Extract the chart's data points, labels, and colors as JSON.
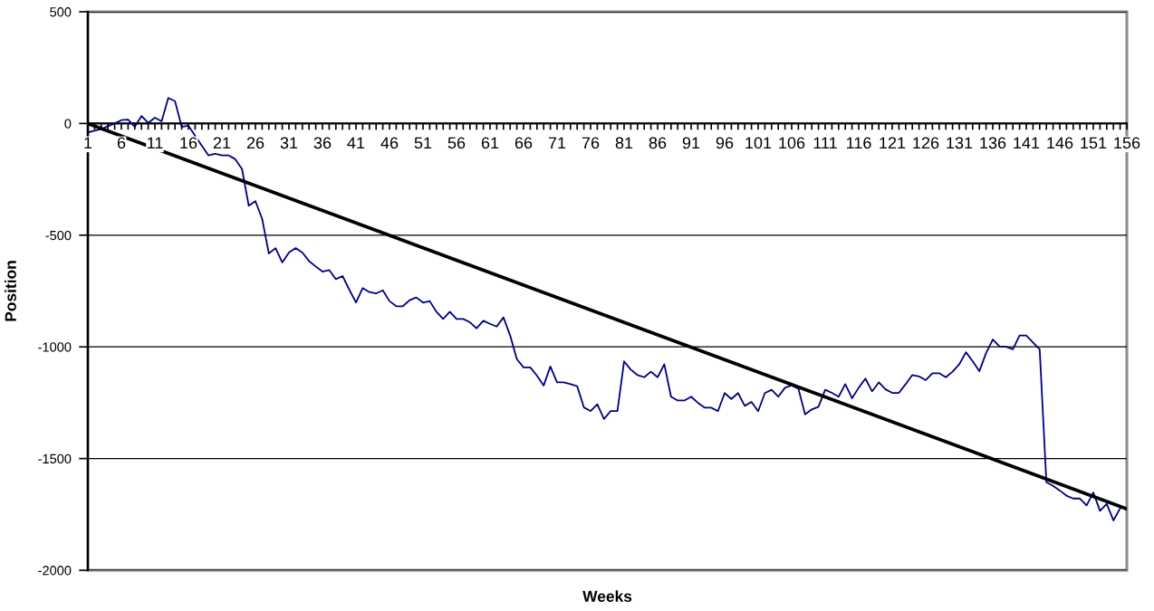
{
  "chart_data": {
    "type": "line",
    "xlabel": "Weeks",
    "ylabel": "Position",
    "x": [
      1,
      2,
      3,
      4,
      5,
      6,
      7,
      8,
      9,
      10,
      11,
      12,
      13,
      14,
      15,
      16,
      17,
      18,
      19,
      20,
      21,
      22,
      23,
      24,
      25,
      26,
      27,
      28,
      29,
      30,
      31,
      32,
      33,
      34,
      35,
      36,
      37,
      38,
      39,
      40,
      41,
      42,
      43,
      44,
      45,
      46,
      47,
      48,
      49,
      50,
      51,
      52,
      53,
      54,
      55,
      56,
      57,
      58,
      59,
      60,
      61,
      62,
      63,
      64,
      65,
      66,
      67,
      68,
      69,
      70,
      71,
      72,
      73,
      74,
      75,
      76,
      77,
      78,
      79,
      80,
      81,
      82,
      83,
      84,
      85,
      86,
      87,
      88,
      89,
      90,
      91,
      92,
      93,
      94,
      95,
      96,
      97,
      98,
      99,
      100,
      101,
      102,
      103,
      104,
      105,
      106,
      107,
      108,
      109,
      110,
      111,
      112,
      113,
      114,
      115,
      116,
      117,
      118,
      119,
      120,
      121,
      122,
      123,
      124,
      125,
      126,
      127,
      128,
      129,
      130,
      131,
      132,
      133,
      134,
      135,
      136,
      137,
      138,
      139,
      140,
      141,
      142,
      143,
      144,
      145,
      146,
      147,
      148,
      149,
      150,
      151,
      152,
      153,
      154,
      155
    ],
    "series": [
      {
        "color": "#000080",
        "values": [
          -40,
          -32,
          -25,
          -12,
          0,
          15,
          17,
          -15,
          33,
          3,
          26,
          10,
          114,
          100,
          -15,
          -10,
          -55,
          -100,
          -143,
          -136,
          -143,
          -143,
          -160,
          -204,
          -368,
          -348,
          -427,
          -582,
          -558,
          -622,
          -578,
          -558,
          -578,
          -616,
          -640,
          -663,
          -656,
          -697,
          -683,
          -744,
          -801,
          -737,
          -755,
          -761,
          -747,
          -795,
          -818,
          -818,
          -791,
          -779,
          -802,
          -795,
          -843,
          -875,
          -843,
          -875,
          -875,
          -890,
          -917,
          -883,
          -897,
          -909,
          -868,
          -949,
          -1055,
          -1092,
          -1092,
          -1129,
          -1173,
          -1088,
          -1159,
          -1159,
          -1167,
          -1176,
          -1271,
          -1287,
          -1257,
          -1323,
          -1287,
          -1287,
          -1065,
          -1102,
          -1126,
          -1136,
          -1111,
          -1136,
          -1078,
          -1223,
          -1240,
          -1240,
          -1223,
          -1250,
          -1272,
          -1272,
          -1288,
          -1207,
          -1233,
          -1207,
          -1264,
          -1246,
          -1288,
          -1207,
          -1192,
          -1223,
          -1183,
          -1172,
          -1187,
          -1302,
          -1280,
          -1268,
          -1192,
          -1206,
          -1223,
          -1167,
          -1230,
          -1183,
          -1142,
          -1199,
          -1159,
          -1190,
          -1206,
          -1206,
          -1167,
          -1126,
          -1132,
          -1149,
          -1118,
          -1118,
          -1136,
          -1111,
          -1078,
          -1024,
          -1064,
          -1109,
          -1028,
          -967,
          -998,
          -1000,
          -1011,
          -949,
          -949,
          -980,
          -1011,
          -1606,
          -1622,
          -1643,
          -1666,
          -1679,
          -1679,
          -1710,
          -1652,
          -1734,
          -1703,
          -1777,
          -1723
        ]
      },
      {
        "type": "line",
        "color": "#000000",
        "x": [
          1,
          156
        ],
        "values": [
          0,
          -1725
        ]
      }
    ],
    "xlim": [
      1,
      156
    ],
    "ylim": [
      -2000,
      500
    ],
    "xticks": [
      1,
      {
        "value": 2,
        "label": null
      },
      {
        "value": 3,
        "label": null
      },
      {
        "value": 4,
        "label": null
      },
      {
        "value": 5,
        "label": null
      },
      6,
      {
        "value": 7,
        "label": null
      },
      {
        "value": 8,
        "label": null
      },
      {
        "value": 9,
        "label": null
      },
      {
        "value": 10,
        "label": null
      },
      11,
      {
        "value": 12,
        "label": null
      },
      {
        "value": 13,
        "label": null
      },
      {
        "value": 14,
        "label": null
      },
      {
        "value": 15,
        "label": null
      },
      16,
      {
        "value": 17,
        "label": null
      },
      {
        "value": 18,
        "label": null
      },
      {
        "value": 19,
        "label": null
      },
      {
        "value": 20,
        "label": null
      },
      21,
      {
        "value": 22,
        "label": null
      },
      {
        "value": 23,
        "label": null
      },
      {
        "value": 24,
        "label": null
      },
      {
        "value": 25,
        "label": null
      },
      26,
      {
        "value": 27,
        "label": null
      },
      {
        "value": 28,
        "label": null
      },
      {
        "value": 29,
        "label": null
      },
      {
        "value": 30,
        "label": null
      },
      31,
      {
        "value": 32,
        "label": null
      },
      {
        "value": 33,
        "label": null
      },
      {
        "value": 34,
        "label": null
      },
      {
        "value": 35,
        "label": null
      },
      36,
      {
        "value": 37,
        "label": null
      },
      {
        "value": 38,
        "label": null
      },
      {
        "value": 39,
        "label": null
      },
      {
        "value": 40,
        "label": null
      },
      41,
      {
        "value": 42,
        "label": null
      },
      {
        "value": 43,
        "label": null
      },
      {
        "value": 44,
        "label": null
      },
      {
        "value": 45,
        "label": null
      },
      46,
      {
        "value": 47,
        "label": null
      },
      {
        "value": 48,
        "label": null
      },
      {
        "value": 49,
        "label": null
      },
      {
        "value": 50,
        "label": null
      },
      51,
      {
        "value": 52,
        "label": null
      },
      {
        "value": 53,
        "label": null
      },
      {
        "value": 54,
        "label": null
      },
      {
        "value": 55,
        "label": null
      },
      56,
      {
        "value": 57,
        "label": null
      },
      {
        "value": 58,
        "label": null
      },
      {
        "value": 59,
        "label": null
      },
      {
        "value": 60,
        "label": null
      },
      61,
      {
        "value": 62,
        "label": null
      },
      {
        "value": 63,
        "label": null
      },
      {
        "value": 64,
        "label": null
      },
      {
        "value": 65,
        "label": null
      },
      66,
      {
        "value": 67,
        "label": null
      },
      {
        "value": 68,
        "label": null
      },
      {
        "value": 69,
        "label": null
      },
      {
        "value": 70,
        "label": null
      },
      71,
      {
        "value": 72,
        "label": null
      },
      {
        "value": 73,
        "label": null
      },
      {
        "value": 74,
        "label": null
      },
      {
        "value": 75,
        "label": null
      },
      76,
      {
        "value": 77,
        "label": null
      },
      {
        "value": 78,
        "label": null
      },
      {
        "value": 79,
        "label": null
      },
      {
        "value": 80,
        "label": null
      },
      81,
      {
        "value": 82,
        "label": null
      },
      {
        "value": 83,
        "label": null
      },
      {
        "value": 84,
        "label": null
      },
      {
        "value": 85,
        "label": null
      },
      86,
      {
        "value": 87,
        "label": null
      },
      {
        "value": 88,
        "label": null
      },
      {
        "value": 89,
        "label": null
      },
      {
        "value": 90,
        "label": null
      },
      91,
      {
        "value": 92,
        "label": null
      },
      {
        "value": 93,
        "label": null
      },
      {
        "value": 94,
        "label": null
      },
      {
        "value": 95,
        "label": null
      },
      96,
      {
        "value": 97,
        "label": null
      },
      {
        "value": 98,
        "label": null
      },
      {
        "value": 99,
        "label": null
      },
      {
        "value": 100,
        "label": null
      },
      101,
      {
        "value": 102,
        "label": null
      },
      {
        "value": 103,
        "label": null
      },
      {
        "value": 104,
        "label": null
      },
      {
        "value": 105,
        "label": null
      },
      106,
      {
        "value": 107,
        "label": null
      },
      {
        "value": 108,
        "label": null
      },
      {
        "value": 109,
        "label": null
      },
      {
        "value": 110,
        "label": null
      },
      111,
      {
        "value": 112,
        "label": null
      },
      {
        "value": 113,
        "label": null
      },
      {
        "value": 114,
        "label": null
      },
      {
        "value": 115,
        "label": null
      },
      116,
      {
        "value": 117,
        "label": null
      },
      {
        "value": 118,
        "label": null
      },
      {
        "value": 119,
        "label": null
      },
      {
        "value": 120,
        "label": null
      },
      121,
      {
        "value": 122,
        "label": null
      },
      {
        "value": 123,
        "label": null
      },
      {
        "value": 124,
        "label": null
      },
      {
        "value": 125,
        "label": null
      },
      126,
      {
        "value": 127,
        "label": null
      },
      {
        "value": 128,
        "label": null
      },
      {
        "value": 129,
        "label": null
      },
      {
        "value": 130,
        "label": null
      },
      131,
      {
        "value": 132,
        "label": null
      },
      {
        "value": 133,
        "label": null
      },
      {
        "value": 134,
        "label": null
      },
      {
        "value": 135,
        "label": null
      },
      136,
      {
        "value": 137,
        "label": null
      },
      {
        "value": 138,
        "label": null
      },
      {
        "value": 139,
        "label": null
      },
      {
        "value": 140,
        "label": null
      },
      141,
      {
        "value": 142,
        "label": null
      },
      {
        "value": 143,
        "label": null
      },
      {
        "value": 144,
        "label": null
      },
      {
        "value": 145,
        "label": null
      },
      146,
      {
        "value": 147,
        "label": null
      },
      {
        "value": 148,
        "label": null
      },
      {
        "value": 149,
        "label": null
      },
      {
        "value": 150,
        "label": null
      },
      151,
      {
        "value": 152,
        "label": null
      },
      {
        "value": 153,
        "label": null
      },
      {
        "value": 154,
        "label": null
      },
      {
        "value": 155,
        "label": null
      },
      156
    ],
    "yticks": [
      -2000,
      -1500,
      -1000,
      -500,
      0,
      500
    ],
    "grid": "y"
  }
}
